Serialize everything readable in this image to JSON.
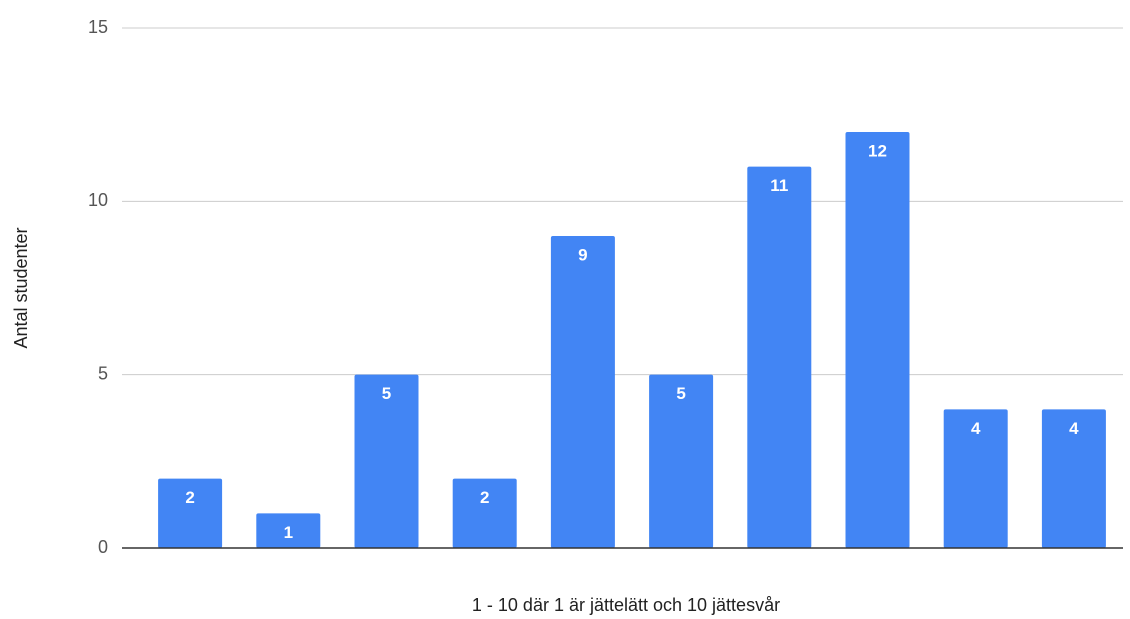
{
  "chart_data": {
    "type": "bar",
    "x_label": "1 - 10 där 1 är jättelätt och 10 jättesvår",
    "y_label": "Antal studenter",
    "categories": [
      null,
      null,
      null,
      null,
      null,
      null,
      null,
      null,
      null,
      null
    ],
    "values": [
      2,
      1,
      5,
      2,
      9,
      5,
      11,
      12,
      4,
      4
    ],
    "color": "#4285f4",
    "ylim": [
      0,
      15
    ],
    "yticks": [
      0,
      5,
      10,
      15
    ],
    "grid": true
  }
}
